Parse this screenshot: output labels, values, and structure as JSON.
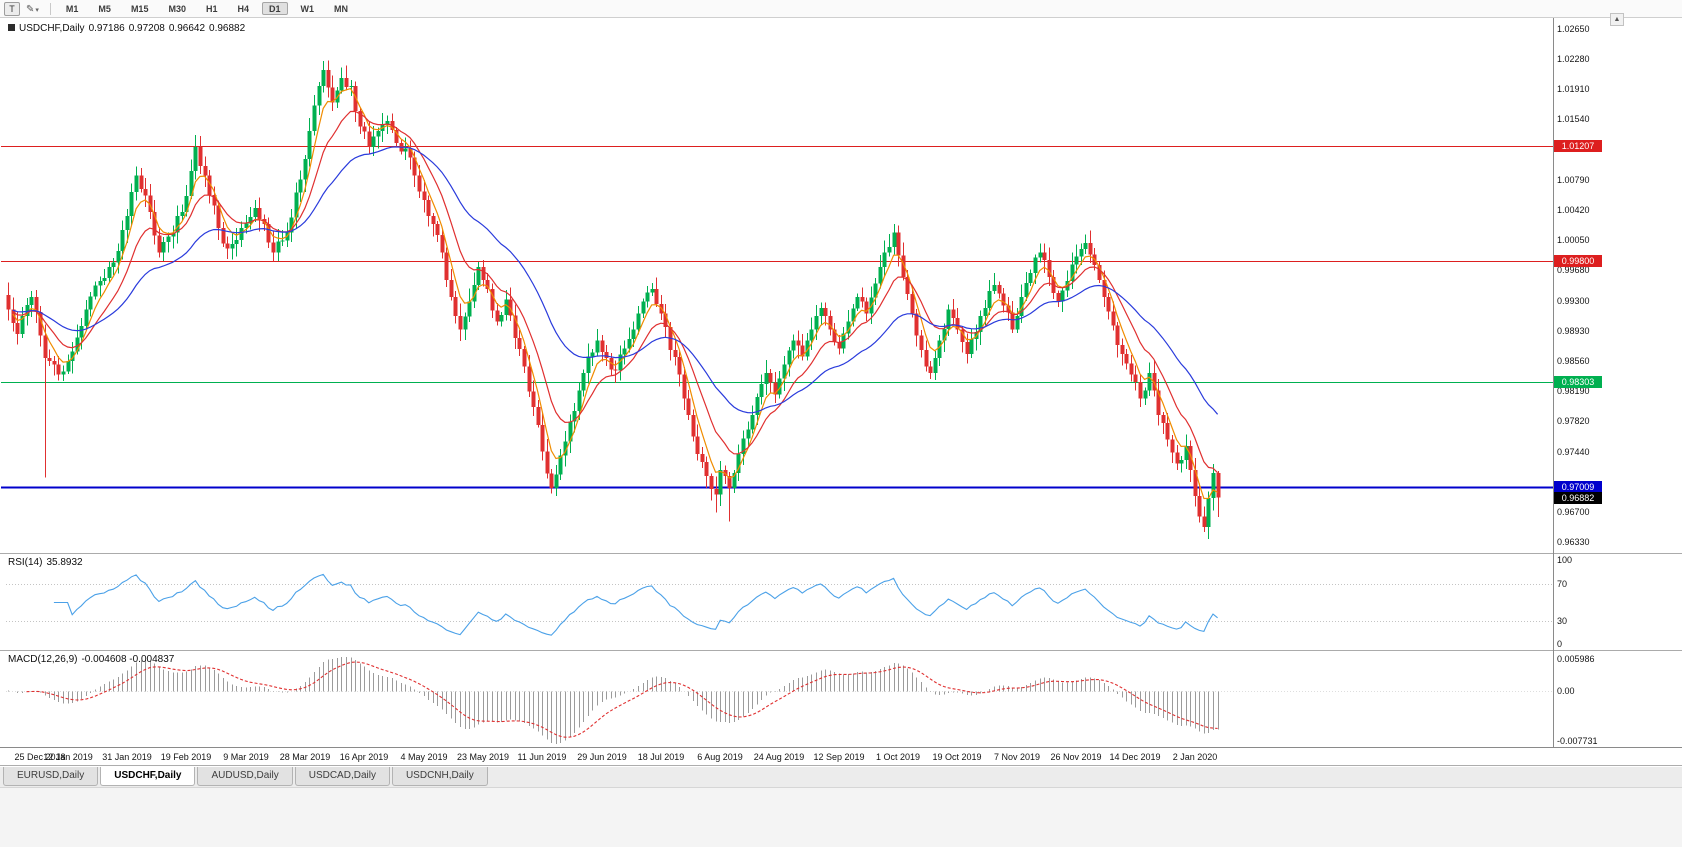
{
  "toolbar": {
    "tool_button_label": "T",
    "timeframes": [
      "M1",
      "M5",
      "M15",
      "M30",
      "H1",
      "H4",
      "D1",
      "W1",
      "MN"
    ],
    "active_timeframe": "D1"
  },
  "chart": {
    "symbol_title": "USDCHF,Daily",
    "quote": {
      "open": "0.97186",
      "high": "0.97208",
      "low": "0.96642",
      "close": "0.96882"
    }
  },
  "chart_data": {
    "type": "candlestick",
    "symbol": "USDCHF",
    "timeframe": "Daily",
    "title": "USDCHF,Daily 0.97186 0.97208 0.96642 0.96882",
    "x_labels": [
      "25 Dec 2018",
      "12 Jan 2019",
      "31 Jan 2019",
      "19 Feb 2019",
      "9 Mar 2019",
      "28 Mar 2019",
      "16 Apr 2019",
      "4 May 2019",
      "23 May 2019",
      "11 Jun 2019",
      "29 Jun 2019",
      "18 Jul 2019",
      "6 Aug 2019",
      "24 Aug 2019",
      "12 Sep 2019",
      "1 Oct 2019",
      "19 Oct 2019",
      "7 Nov 2019",
      "26 Nov 2019",
      "14 Dec 2019",
      "2 Jan 2020"
    ],
    "y_axis": {
      "min": 0.962,
      "max": 1.0274,
      "visible_ticks": [
        "1.02650",
        "1.02280",
        "1.01910",
        "1.01540",
        "1.00790",
        "1.00420",
        "1.00050",
        "0.99680",
        "0.99300",
        "0.98930",
        "0.98560",
        "0.98190",
        "0.97820",
        "0.97440",
        "0.96700",
        "0.96330"
      ]
    },
    "horizontal_lines": [
      {
        "price": 1.01207,
        "label": "1.01207",
        "color": "#dd1f1f",
        "thickness": 1
      },
      {
        "price": 0.998,
        "label": "0.99800",
        "color": "#dd1f1f",
        "thickness": 1
      },
      {
        "price": 0.98303,
        "label": "0.98303",
        "color": "#00b050",
        "thickness": 1
      },
      {
        "price": 0.97009,
        "label": "0.97009",
        "color": "#0000cc",
        "thickness": 2
      }
    ],
    "current_price": {
      "value": 0.96882,
      "label": "0.96882",
      "badge_color": "#000000"
    },
    "candle_count": 266,
    "visible_slots": 339,
    "bull_color": "#00b050",
    "bear_color": "#e03030",
    "close_waypoints": [
      [
        0,
        0.992
      ],
      [
        2,
        0.989
      ],
      [
        5,
        0.9935
      ],
      [
        8,
        0.986
      ],
      [
        11,
        0.984
      ],
      [
        14,
        0.9868
      ],
      [
        17,
        0.992
      ],
      [
        20,
        0.9955
      ],
      [
        23,
        0.9978
      ],
      [
        26,
        1.0035
      ],
      [
        28,
        1.0085
      ],
      [
        31,
        1.004
      ],
      [
        33,
        0.999
      ],
      [
        36,
        1.0015
      ],
      [
        39,
        1.006
      ],
      [
        41,
        1.012
      ],
      [
        43,
        1.0085
      ],
      [
        46,
        1.002
      ],
      [
        48,
        0.9995
      ],
      [
        51,
        1.002
      ],
      [
        54,
        1.0045
      ],
      [
        56,
        1.0025
      ],
      [
        58,
        0.999
      ],
      [
        61,
        1.0015
      ],
      [
        64,
        1.008
      ],
      [
        66,
        1.014
      ],
      [
        68,
        1.0195
      ],
      [
        69,
        1.0215
      ],
      [
        71,
        1.0175
      ],
      [
        73,
        1.0205
      ],
      [
        75,
        1.0195
      ],
      [
        77,
        1.0145
      ],
      [
        79,
        1.012
      ],
      [
        81,
        1.014
      ],
      [
        83,
        1.0152
      ],
      [
        85,
        1.0125
      ],
      [
        87,
        1.0118
      ],
      [
        89,
        1.0085
      ],
      [
        91,
        1.0055
      ],
      [
        93,
        1.0025
      ],
      [
        95,
        0.999
      ],
      [
        97,
        0.9935
      ],
      [
        99,
        0.9895
      ],
      [
        101,
        0.993
      ],
      [
        103,
        0.9972
      ],
      [
        105,
        0.9945
      ],
      [
        107,
        0.9905
      ],
      [
        109,
        0.9932
      ],
      [
        111,
        0.9885
      ],
      [
        113,
        0.985
      ],
      [
        115,
        0.98
      ],
      [
        117,
        0.9745
      ],
      [
        119,
        0.97
      ],
      [
        121,
        0.974
      ],
      [
        123,
        0.9782
      ],
      [
        125,
        0.982
      ],
      [
        127,
        0.9862
      ],
      [
        129,
        0.9882
      ],
      [
        131,
        0.986
      ],
      [
        133,
        0.9845
      ],
      [
        135,
        0.9872
      ],
      [
        137,
        0.9895
      ],
      [
        139,
        0.993
      ],
      [
        141,
        0.9945
      ],
      [
        143,
        0.9915
      ],
      [
        145,
        0.987
      ],
      [
        147,
        0.984
      ],
      [
        149,
        0.979
      ],
      [
        151,
        0.9742
      ],
      [
        153,
        0.9715
      ],
      [
        155,
        0.9692
      ],
      [
        156,
        0.9722
      ],
      [
        158,
        0.97
      ],
      [
        160,
        0.9742
      ],
      [
        162,
        0.9772
      ],
      [
        164,
        0.9812
      ],
      [
        166,
        0.9842
      ],
      [
        168,
        0.9815
      ],
      [
        170,
        0.9852
      ],
      [
        172,
        0.9882
      ],
      [
        174,
        0.9862
      ],
      [
        176,
        0.9895
      ],
      [
        178,
        0.9922
      ],
      [
        180,
        0.9895
      ],
      [
        182,
        0.9872
      ],
      [
        184,
        0.9905
      ],
      [
        186,
        0.9935
      ],
      [
        188,
        0.9915
      ],
      [
        190,
        0.9952
      ],
      [
        192,
        0.999
      ],
      [
        194,
        1.0015
      ],
      [
        196,
        0.996
      ],
      [
        198,
        0.9915
      ],
      [
        200,
        0.987
      ],
      [
        202,
        0.9842
      ],
      [
        204,
        0.9882
      ],
      [
        206,
        0.992
      ],
      [
        208,
        0.9895
      ],
      [
        210,
        0.9865
      ],
      [
        212,
        0.9892
      ],
      [
        214,
        0.9922
      ],
      [
        216,
        0.995
      ],
      [
        218,
        0.9925
      ],
      [
        220,
        0.9895
      ],
      [
        222,
        0.9935
      ],
      [
        224,
        0.9965
      ],
      [
        226,
        0.999
      ],
      [
        228,
        0.996
      ],
      [
        230,
        0.993
      ],
      [
        232,
        0.9955
      ],
      [
        234,
        0.9985
      ],
      [
        236,
        1.0002
      ],
      [
        238,
        0.9975
      ],
      [
        240,
        0.9935
      ],
      [
        242,
        0.99
      ],
      [
        244,
        0.9865
      ],
      [
        246,
        0.984
      ],
      [
        248,
        0.981
      ],
      [
        250,
        0.9842
      ],
      [
        252,
        0.979
      ],
      [
        254,
        0.976
      ],
      [
        256,
        0.973
      ],
      [
        258,
        0.9752
      ],
      [
        259,
        0.9722
      ],
      [
        260,
        0.969
      ],
      [
        261,
        0.9665
      ],
      [
        262,
        0.9652
      ],
      [
        263,
        0.9688
      ],
      [
        264,
        0.97186
      ],
      [
        265,
        0.96882
      ]
    ],
    "wick_overrides": [
      {
        "index": 8,
        "low": 0.9713
      },
      {
        "index": 69,
        "high": 1.0226
      },
      {
        "index": 73,
        "high": 1.0218
      },
      {
        "index": 119,
        "low": 0.9693
      },
      {
        "index": 155,
        "low": 0.967
      },
      {
        "index": 158,
        "low": 0.9659
      },
      {
        "index": 262,
        "low": 0.9646
      }
    ],
    "last_candle": {
      "open": 0.97186,
      "high": 0.97208,
      "low": 0.96642,
      "close": 0.96882
    },
    "moving_averages": [
      {
        "name": "fast",
        "period": 5,
        "color": "#f08c00"
      },
      {
        "name": "medium",
        "period": 12,
        "color": "#e03030"
      },
      {
        "name": "slow",
        "period": 32,
        "color": "#2a3bdc"
      }
    ],
    "indicators": {
      "rsi": {
        "label": "RSI(14)",
        "period": 14,
        "current": "35.8932",
        "levels": [
          "100",
          "70",
          "30",
          "0"
        ],
        "level_values": [
          100,
          70,
          30,
          0
        ],
        "line_color": "#4ba1e8"
      },
      "macd": {
        "label": "MACD(12,26,9)",
        "current": "-0.004608 -0.004837",
        "fast": 12,
        "slow": 26,
        "signal": 9,
        "scale_top": "0.005986",
        "scale_zero": "0.00",
        "scale_bottom": "-0.007731",
        "histogram_color": "#9b9b9b",
        "signal_color": "#e03030"
      }
    }
  },
  "tabs": {
    "items": [
      "EURUSD,Daily",
      "USDCHF,Daily",
      "AUDUSD,Daily",
      "USDCAD,Daily",
      "USDCNH,Daily"
    ],
    "active_index": 1
  }
}
